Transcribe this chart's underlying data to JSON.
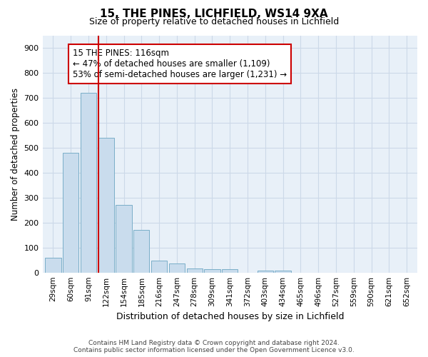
{
  "title1": "15, THE PINES, LICHFIELD, WS14 9XA",
  "title2": "Size of property relative to detached houses in Lichfield",
  "xlabel": "Distribution of detached houses by size in Lichfield",
  "ylabel": "Number of detached properties",
  "categories": [
    "29sqm",
    "60sqm",
    "91sqm",
    "122sqm",
    "154sqm",
    "185sqm",
    "216sqm",
    "247sqm",
    "278sqm",
    "309sqm",
    "341sqm",
    "372sqm",
    "403sqm",
    "434sqm",
    "465sqm",
    "496sqm",
    "527sqm",
    "559sqm",
    "590sqm",
    "621sqm",
    "652sqm"
  ],
  "values": [
    60,
    480,
    720,
    540,
    270,
    170,
    47,
    35,
    16,
    14,
    14,
    0,
    8,
    8,
    0,
    0,
    0,
    0,
    0,
    0,
    0
  ],
  "bar_color": "#c9dced",
  "bar_edge_color": "#7aaec8",
  "highlight_line_color": "#cc0000",
  "annotation_text": "15 THE PINES: 116sqm\n← 47% of detached houses are smaller (1,109)\n53% of semi-detached houses are larger (1,231) →",
  "annotation_box_color": "#cc0000",
  "grid_color": "#ccd9e8",
  "bg_color": "#e8f0f8",
  "yticks": [
    0,
    100,
    200,
    300,
    400,
    500,
    600,
    700,
    800,
    900
  ],
  "ylim": [
    0,
    950
  ],
  "footer1": "Contains HM Land Registry data © Crown copyright and database right 2024.",
  "footer2": "Contains public sector information licensed under the Open Government Licence v3.0."
}
